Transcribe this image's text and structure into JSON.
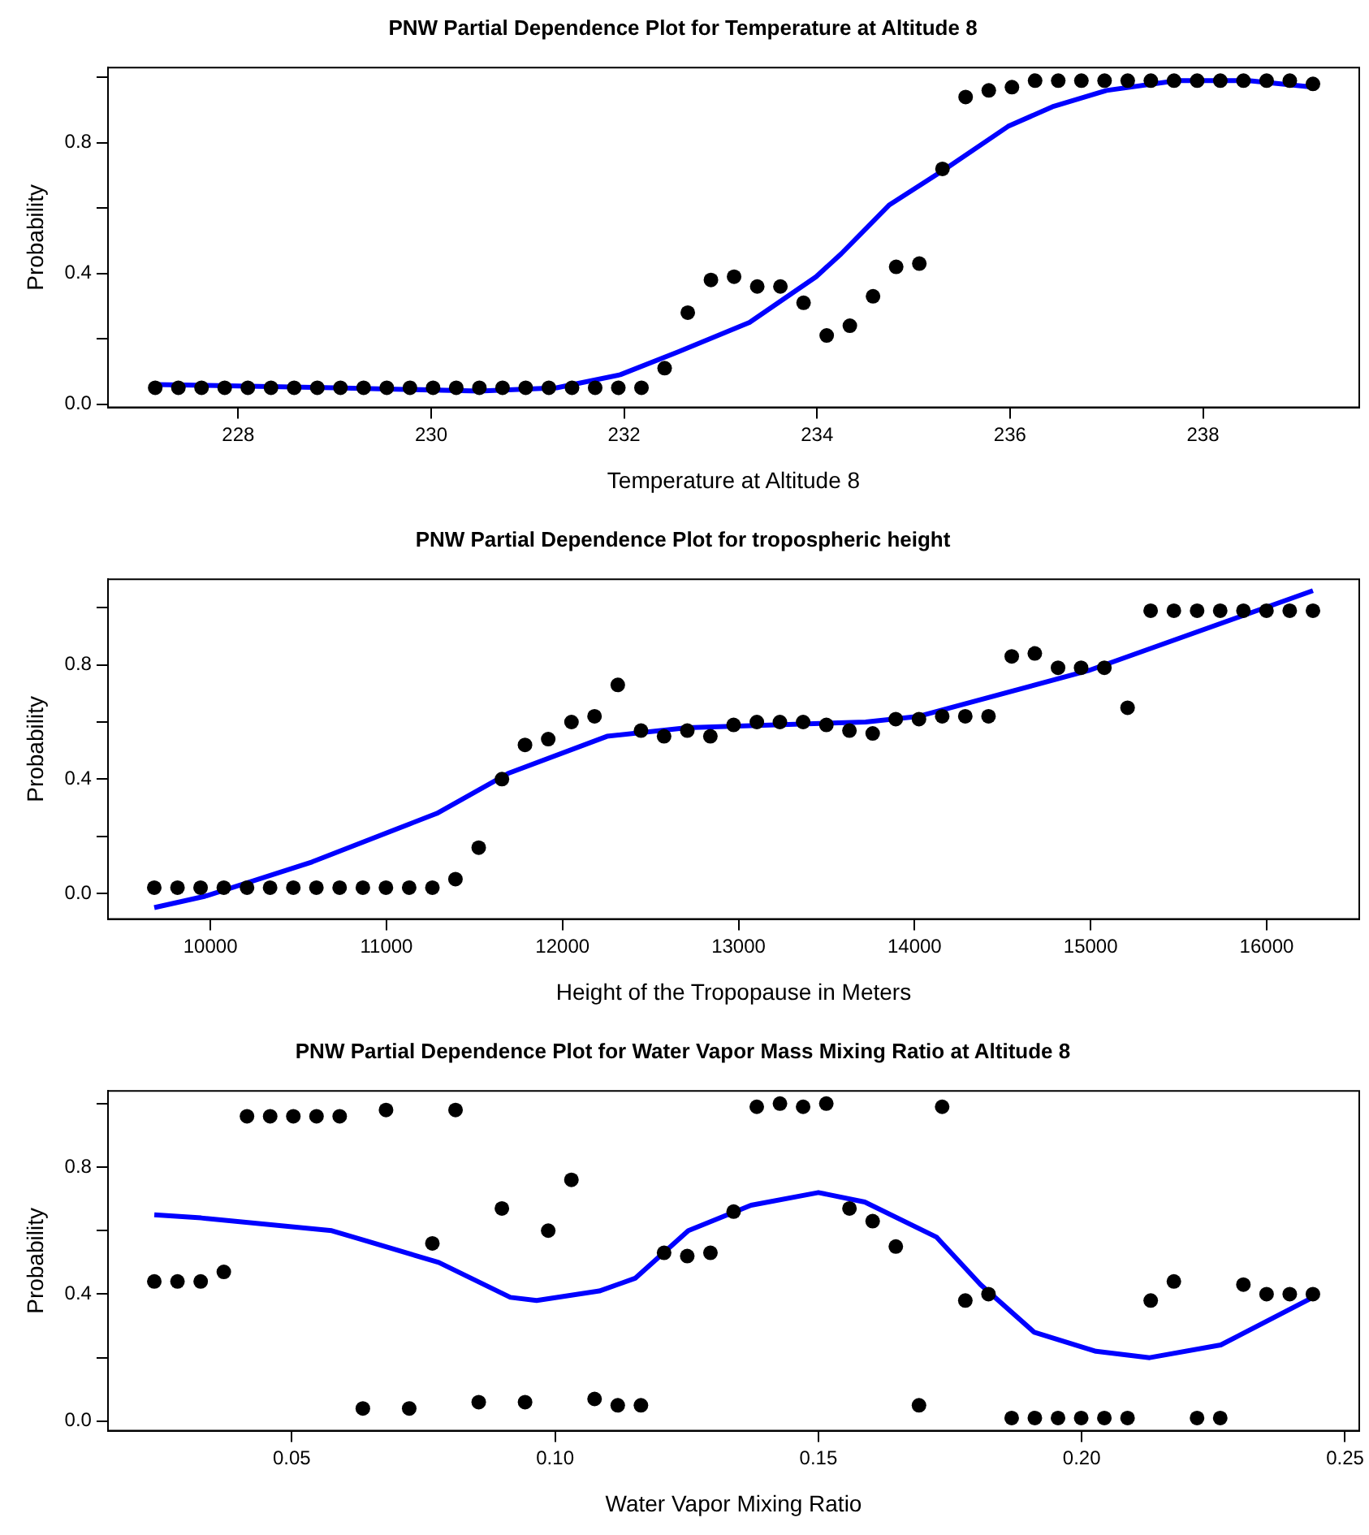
{
  "chart_data": [
    {
      "type": "scatter",
      "title": "PNW Partial Dependence Plot for Temperature at Altitude 8",
      "xlabel": "Temperature at Altitude 8",
      "ylabel": "Probability",
      "grid": false,
      "legend": false,
      "xlim": [
        226.65,
        239.62
      ],
      "xticks": [
        228,
        230,
        232,
        234,
        236,
        238
      ],
      "ylim": [
        -0.01,
        1.03
      ],
      "yticks": [
        {
          "value": 0,
          "label": "0.0"
        },
        {
          "value": 0.2,
          "label": null
        },
        {
          "value": 0.4,
          "label": "0.4"
        },
        {
          "value": 0.6,
          "label": null
        },
        {
          "value": 0.8,
          "label": "0.8"
        },
        {
          "value": 1,
          "label": null
        }
      ],
      "series": [
        {
          "type": "scatter",
          "marker": "circle",
          "color": "#000000",
          "x": [
            227.14,
            227.38,
            227.62,
            227.86,
            228.1,
            228.34,
            228.58,
            228.82,
            229.06,
            229.3,
            229.54,
            229.78,
            230.02,
            230.26,
            230.5,
            230.74,
            230.98,
            231.22,
            231.46,
            231.7,
            231.94,
            232.18,
            232.42,
            232.66,
            232.9,
            233.14,
            233.38,
            233.62,
            233.86,
            234.1,
            234.34,
            234.58,
            234.82,
            235.06,
            235.3,
            235.54,
            235.78,
            236.02,
            236.26,
            236.5,
            236.74,
            236.98,
            237.22,
            237.46,
            237.7,
            237.94,
            238.18,
            238.42,
            238.66,
            238.9,
            239.14
          ],
          "values": [
            0.05,
            0.05,
            0.05,
            0.05,
            0.05,
            0.05,
            0.05,
            0.05,
            0.05,
            0.05,
            0.05,
            0.05,
            0.05,
            0.05,
            0.05,
            0.05,
            0.05,
            0.05,
            0.05,
            0.05,
            0.05,
            0.05,
            0.11,
            0.28,
            0.38,
            0.39,
            0.36,
            0.36,
            0.31,
            0.21,
            0.24,
            0.33,
            0.42,
            0.43,
            0.72,
            0.94,
            0.96,
            0.97,
            0.99,
            0.99,
            0.99,
            0.99,
            0.99,
            0.99,
            0.99,
            0.99,
            0.99,
            0.99,
            0.99,
            0.99,
            0.98
          ]
        },
        {
          "type": "line",
          "marker": "none",
          "color": "#0000ff",
          "x": [
            227.14,
            229,
            230.5,
            231.3,
            231.96,
            232.56,
            233.3,
            233.99,
            234.25,
            234.75,
            235.33,
            235.98,
            236.44,
            237,
            237.73,
            238.47,
            239.14
          ],
          "values": [
            0.06,
            0.05,
            0.04,
            0.05,
            0.09,
            0.16,
            0.25,
            0.39,
            0.46,
            0.61,
            0.72,
            0.85,
            0.91,
            0.96,
            0.99,
            0.99,
            0.97
          ]
        }
      ]
    },
    {
      "type": "scatter",
      "title": "PNW Partial Dependence Plot for tropospheric height",
      "xlabel": "Height of the Tropopause in Meters",
      "ylabel": "Probability",
      "grid": false,
      "legend": false,
      "xlim": [
        9418,
        16526
      ],
      "xticks": [
        10000,
        11000,
        12000,
        13000,
        14000,
        15000,
        16000
      ],
      "ylim": [
        -0.09,
        1.1
      ],
      "yticks": [
        {
          "value": 0,
          "label": "0.0"
        },
        {
          "value": 0.2,
          "label": null
        },
        {
          "value": 0.4,
          "label": "0.4"
        },
        {
          "value": 0.6,
          "label": null
        },
        {
          "value": 0.8,
          "label": "0.8"
        },
        {
          "value": 1,
          "label": null
        }
      ],
      "series": [
        {
          "type": "scatter",
          "marker": "circle",
          "color": "#000000",
          "x": [
            9681,
            9813,
            9944,
            10076,
            10208,
            10339,
            10471,
            10602,
            10734,
            10866,
            10997,
            11129,
            11261,
            11392,
            11524,
            11656,
            11787,
            11919,
            12051,
            12182,
            12314,
            12446,
            12577,
            12709,
            12840,
            12972,
            13104,
            13235,
            13367,
            13499,
            13630,
            13762,
            13893,
            14025,
            14157,
            14288,
            14420,
            14552,
            14683,
            14815,
            14946,
            15078,
            15210,
            15341,
            15473,
            15605,
            15736,
            15868,
            15999,
            16131,
            16263
          ],
          "values": [
            0.02,
            0.02,
            0.02,
            0.02,
            0.02,
            0.02,
            0.02,
            0.02,
            0.02,
            0.02,
            0.02,
            0.02,
            0.02,
            0.05,
            0.16,
            0.4,
            0.52,
            0.54,
            0.6,
            0.62,
            0.73,
            0.57,
            0.55,
            0.57,
            0.55,
            0.59,
            0.6,
            0.6,
            0.6,
            0.59,
            0.57,
            0.56,
            0.61,
            0.61,
            0.62,
            0.62,
            0.62,
            0.83,
            0.84,
            0.79,
            0.79,
            0.79,
            0.65,
            0.99,
            0.99,
            0.99,
            0.99,
            0.99,
            0.99,
            0.99,
            0.99
          ]
        },
        {
          "type": "line",
          "marker": "none",
          "color": "#0000ff",
          "x": [
            9681,
            9970,
            10577,
            11286,
            11691,
            12253,
            12709,
            13722,
            14025,
            14987,
            16263
          ],
          "values": [
            -0.05,
            -0.01,
            0.11,
            0.28,
            0.42,
            0.55,
            0.58,
            0.6,
            0.62,
            0.78,
            1.06
          ]
        }
      ]
    },
    {
      "type": "scatter",
      "title": "PNW Partial Dependence Plot for Water Vapor Mass Mixing Ratio at Altitude 8",
      "xlabel": "Water Vapor Mixing Ratio",
      "ylabel": "Probability",
      "grid": false,
      "legend": false,
      "xlim": [
        0.0151,
        0.2527
      ],
      "xticks": [
        0.05,
        {
          "value": 0.1,
          "label": "0.10"
        },
        0.15,
        {
          "value": 0.2,
          "label": "0.20"
        },
        0.25
      ],
      "ylim": [
        -0.03,
        1.04
      ],
      "yticks": [
        {
          "value": 0,
          "label": "0.0"
        },
        {
          "value": 0.2,
          "label": null
        },
        {
          "value": 0.4,
          "label": "0.4"
        },
        {
          "value": 0.6,
          "label": null
        },
        {
          "value": 0.8,
          "label": "0.8"
        },
        {
          "value": 1,
          "label": null
        }
      ],
      "series": [
        {
          "type": "scatter",
          "marker": "circle",
          "color": "#000000",
          "x": [
            0.0239,
            0.0283,
            0.0327,
            0.0371,
            0.0415,
            0.0459,
            0.0503,
            0.0547,
            0.0591,
            0.0635,
            0.0679,
            0.0723,
            0.0767,
            0.0811,
            0.0855,
            0.0899,
            0.0943,
            0.0987,
            0.1031,
            0.1075,
            0.1119,
            0.1163,
            0.1207,
            0.1251,
            0.1295,
            0.1339,
            0.1383,
            0.1427,
            0.1471,
            0.1515,
            0.1559,
            0.1603,
            0.1647,
            0.1691,
            0.1735,
            0.1779,
            0.1823,
            0.1867,
            0.1911,
            0.1955,
            0.1999,
            0.2043,
            0.2087,
            0.2131,
            0.2175,
            0.2219,
            0.2263,
            0.2307,
            0.2351,
            0.2395,
            0.2439
          ],
          "values": [
            0.44,
            0.44,
            0.44,
            0.47,
            0.96,
            0.96,
            0.96,
            0.96,
            0.96,
            0.04,
            0.98,
            0.04,
            0.56,
            0.98,
            0.06,
            0.67,
            0.06,
            0.6,
            0.76,
            0.07,
            0.05,
            0.05,
            0.53,
            0.52,
            0.53,
            0.66,
            0.99,
            1,
            0.99,
            1,
            0.67,
            0.63,
            0.55,
            0.05,
            0.99,
            0.38,
            0.4,
            0.01,
            0.01,
            0.01,
            0.01,
            0.01,
            0.01,
            0.38,
            0.44,
            0.01,
            0.01,
            0.43,
            0.4,
            0.4,
            0.4
          ]
        },
        {
          "type": "line",
          "marker": "none",
          "color": "#0000ff",
          "x": [
            0.0239,
            0.0328,
            0.0576,
            0.0779,
            0.0915,
            0.0965,
            0.1084,
            0.1152,
            0.1253,
            0.1372,
            0.15,
            0.1588,
            0.1724,
            0.1808,
            0.191,
            0.2027,
            0.2129,
            0.2264,
            0.2439
          ],
          "values": [
            0.65,
            0.64,
            0.6,
            0.5,
            0.39,
            0.38,
            0.41,
            0.45,
            0.6,
            0.68,
            0.72,
            0.69,
            0.58,
            0.43,
            0.28,
            0.22,
            0.2,
            0.24,
            0.39
          ]
        }
      ]
    }
  ]
}
